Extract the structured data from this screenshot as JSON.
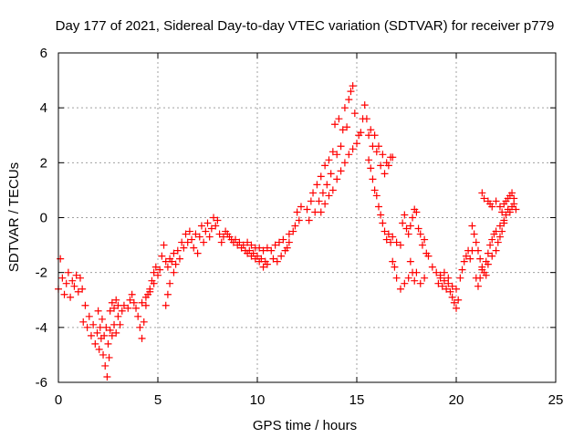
{
  "chart_data": {
    "type": "scatter",
    "title": "Day 177 of 2021, Sidereal Day-to-day VTEC variation (SDTVAR) for receiver p779",
    "xlabel": "GPS time / hours",
    "ylabel": "SDTVAR / TECUs",
    "xlim": [
      0,
      25
    ],
    "ylim": [
      -6,
      6
    ],
    "xticks": [
      0,
      5,
      10,
      15,
      20,
      25
    ],
    "yticks": [
      -6,
      -4,
      -2,
      0,
      2,
      4,
      6
    ],
    "grid": true,
    "marker": "+",
    "color": "#ff0000",
    "series": [
      {
        "name": "SDTVAR",
        "points": [
          [
            0.0,
            -2.6
          ],
          [
            0.1,
            -1.5
          ],
          [
            0.2,
            -2.2
          ],
          [
            0.3,
            -2.8
          ],
          [
            0.4,
            -2.4
          ],
          [
            0.5,
            -2.0
          ],
          [
            0.6,
            -2.9
          ],
          [
            0.7,
            -2.3
          ],
          [
            0.8,
            -2.5
          ],
          [
            0.9,
            -2.1
          ],
          [
            1.0,
            -2.7
          ],
          [
            1.1,
            -2.2
          ],
          [
            1.2,
            -2.6
          ],
          [
            1.25,
            -3.8
          ],
          [
            1.35,
            -3.2
          ],
          [
            1.45,
            -4.0
          ],
          [
            1.55,
            -3.6
          ],
          [
            1.65,
            -4.3
          ],
          [
            1.75,
            -3.9
          ],
          [
            1.85,
            -4.6
          ],
          [
            1.95,
            -4.2
          ],
          [
            2.05,
            -4.8
          ],
          [
            2.15,
            -4.4
          ],
          [
            2.25,
            -5.0
          ],
          [
            2.35,
            -5.4
          ],
          [
            2.45,
            -5.8
          ],
          [
            2.55,
            -5.1
          ],
          [
            2.0,
            -3.4
          ],
          [
            2.1,
            -4.0
          ],
          [
            2.2,
            -3.7
          ],
          [
            2.3,
            -4.3
          ],
          [
            2.4,
            -4.0
          ],
          [
            2.5,
            -4.6
          ],
          [
            2.6,
            -4.1
          ],
          [
            2.7,
            -4.3
          ],
          [
            2.8,
            -3.9
          ],
          [
            2.9,
            -4.2
          ],
          [
            3.0,
            -3.6
          ],
          [
            3.1,
            -3.9
          ],
          [
            2.6,
            -3.4
          ],
          [
            2.7,
            -3.1
          ],
          [
            2.8,
            -3.3
          ],
          [
            2.9,
            -3.0
          ],
          [
            3.0,
            -3.2
          ],
          [
            3.2,
            -3.4
          ],
          [
            3.3,
            -3.2
          ],
          [
            3.5,
            -3.3
          ],
          [
            3.6,
            -3.0
          ],
          [
            3.7,
            -2.8
          ],
          [
            3.8,
            -3.1
          ],
          [
            3.9,
            -3.3
          ],
          [
            4.0,
            -3.6
          ],
          [
            4.1,
            -4.0
          ],
          [
            4.2,
            -4.4
          ],
          [
            4.3,
            -3.8
          ],
          [
            4.4,
            -3.2
          ],
          [
            4.5,
            -2.8
          ],
          [
            4.6,
            -2.6
          ],
          [
            4.7,
            -2.3
          ],
          [
            4.8,
            -2.0
          ],
          [
            4.9,
            -1.8
          ],
          [
            4.2,
            -3.1
          ],
          [
            4.4,
            -2.9
          ],
          [
            4.6,
            -2.7
          ],
          [
            4.8,
            -2.4
          ],
          [
            5.0,
            -2.1
          ],
          [
            5.1,
            -1.9
          ],
          [
            5.2,
            -1.4
          ],
          [
            5.3,
            -1.0
          ],
          [
            5.4,
            -1.6
          ],
          [
            5.5,
            -1.8
          ],
          [
            5.6,
            -1.5
          ],
          [
            5.7,
            -1.6
          ],
          [
            5.8,
            -1.3
          ],
          [
            5.4,
            -3.2
          ],
          [
            5.5,
            -2.8
          ],
          [
            5.6,
            -2.4
          ],
          [
            5.8,
            -2.0
          ],
          [
            5.9,
            -1.7
          ],
          [
            6.0,
            -1.2
          ],
          [
            6.1,
            -1.5
          ],
          [
            6.2,
            -0.9
          ],
          [
            6.3,
            -1.1
          ],
          [
            6.4,
            -0.6
          ],
          [
            6.5,
            -0.9
          ],
          [
            6.6,
            -0.5
          ],
          [
            6.7,
            -0.8
          ],
          [
            6.8,
            -1.1
          ],
          [
            6.9,
            -0.6
          ],
          [
            7.0,
            -1.3
          ],
          [
            7.1,
            -0.7
          ],
          [
            7.2,
            -0.3
          ],
          [
            7.3,
            -0.9
          ],
          [
            7.4,
            -0.5
          ],
          [
            7.5,
            -0.2
          ],
          [
            7.6,
            -0.7
          ],
          [
            7.7,
            -0.4
          ],
          [
            7.8,
            0.0
          ],
          [
            7.9,
            -0.3
          ],
          [
            8.0,
            -0.1
          ],
          [
            8.1,
            -0.6
          ],
          [
            8.2,
            -0.9
          ],
          [
            8.3,
            -0.7
          ],
          [
            8.4,
            -0.5
          ],
          [
            8.5,
            -0.6
          ],
          [
            8.6,
            -0.7
          ],
          [
            8.7,
            -0.8
          ],
          [
            8.8,
            -0.9
          ],
          [
            8.9,
            -0.8
          ],
          [
            9.0,
            -1.0
          ],
          [
            9.1,
            -0.9
          ],
          [
            9.2,
            -1.1
          ],
          [
            9.3,
            -1.0
          ],
          [
            9.4,
            -1.2
          ],
          [
            9.5,
            -1.3
          ],
          [
            9.6,
            -1.2
          ],
          [
            9.7,
            -1.4
          ],
          [
            9.8,
            -1.3
          ],
          [
            9.9,
            -1.5
          ],
          [
            10.0,
            -1.4
          ],
          [
            10.1,
            -1.6
          ],
          [
            10.2,
            -1.5
          ],
          [
            10.3,
            -1.8
          ],
          [
            10.4,
            -1.6
          ],
          [
            10.5,
            -1.7
          ],
          [
            9.5,
            -0.9
          ],
          [
            9.7,
            -1.0
          ],
          [
            9.9,
            -1.1
          ],
          [
            10.1,
            -1.1
          ],
          [
            10.3,
            -1.2
          ],
          [
            10.5,
            -1.1
          ],
          [
            10.7,
            -1.2
          ],
          [
            10.9,
            -1.0
          ],
          [
            11.1,
            -0.9
          ],
          [
            11.3,
            -0.8
          ],
          [
            11.5,
            -1.1
          ],
          [
            11.6,
            -0.6
          ],
          [
            10.8,
            -1.5
          ],
          [
            11.0,
            -1.6
          ],
          [
            11.2,
            -1.4
          ],
          [
            11.4,
            -1.2
          ],
          [
            11.6,
            -0.9
          ],
          [
            11.8,
            -0.5
          ],
          [
            11.9,
            -0.3
          ],
          [
            12.0,
            0.2
          ],
          [
            12.1,
            -0.1
          ],
          [
            12.2,
            0.4
          ],
          [
            12.5,
            0.3
          ],
          [
            12.6,
            -0.1
          ],
          [
            12.7,
            0.6
          ],
          [
            12.8,
            0.9
          ],
          [
            12.9,
            0.2
          ],
          [
            13.0,
            1.2
          ],
          [
            13.1,
            0.6
          ],
          [
            13.2,
            1.5
          ],
          [
            13.3,
            0.9
          ],
          [
            13.4,
            1.9
          ],
          [
            13.5,
            1.2
          ],
          [
            13.6,
            2.1
          ],
          [
            13.7,
            1.6
          ],
          [
            13.8,
            2.4
          ],
          [
            13.9,
            3.4
          ],
          [
            14.0,
            2.3
          ],
          [
            14.1,
            3.6
          ],
          [
            14.2,
            2.6
          ],
          [
            14.3,
            3.2
          ],
          [
            14.4,
            4.0
          ],
          [
            14.5,
            3.3
          ],
          [
            14.6,
            4.3
          ],
          [
            14.7,
            4.6
          ],
          [
            14.8,
            4.8
          ],
          [
            14.9,
            3.8
          ],
          [
            13.2,
            0.2
          ],
          [
            13.4,
            0.5
          ],
          [
            13.6,
            0.8
          ],
          [
            13.8,
            1.0
          ],
          [
            14.0,
            1.4
          ],
          [
            14.2,
            1.7
          ],
          [
            14.4,
            2.0
          ],
          [
            14.6,
            2.3
          ],
          [
            14.8,
            2.5
          ],
          [
            15.0,
            2.7
          ],
          [
            15.1,
            3.0
          ],
          [
            15.2,
            3.1
          ],
          [
            15.3,
            3.6
          ],
          [
            15.4,
            4.1
          ],
          [
            15.5,
            3.6
          ],
          [
            15.6,
            3.0
          ],
          [
            15.7,
            3.2
          ],
          [
            15.8,
            2.6
          ],
          [
            15.9,
            3.0
          ],
          [
            16.0,
            2.4
          ],
          [
            16.1,
            2.6
          ],
          [
            16.2,
            1.9
          ],
          [
            16.3,
            2.3
          ],
          [
            16.4,
            1.6
          ],
          [
            16.5,
            2.0
          ],
          [
            16.6,
            1.9
          ],
          [
            16.7,
            2.2
          ],
          [
            16.8,
            2.2
          ],
          [
            15.6,
            2.1
          ],
          [
            15.7,
            1.8
          ],
          [
            15.8,
            1.4
          ],
          [
            15.9,
            1.0
          ],
          [
            16.0,
            0.8
          ],
          [
            16.1,
            0.4
          ],
          [
            16.2,
            0.1
          ],
          [
            16.3,
            -0.2
          ],
          [
            16.4,
            -0.5
          ],
          [
            16.5,
            -0.8
          ],
          [
            16.6,
            -0.6
          ],
          [
            16.7,
            -0.9
          ],
          [
            16.8,
            -0.7
          ],
          [
            17.0,
            -0.9
          ],
          [
            17.2,
            -1.0
          ],
          [
            17.3,
            -0.2
          ],
          [
            17.4,
            0.1
          ],
          [
            17.5,
            -0.4
          ],
          [
            17.6,
            -0.6
          ],
          [
            17.7,
            -0.3
          ],
          [
            17.8,
            0.0
          ],
          [
            17.9,
            0.3
          ],
          [
            18.0,
            0.2
          ],
          [
            18.1,
            -0.4
          ],
          [
            18.2,
            -0.6
          ],
          [
            18.3,
            -1.0
          ],
          [
            18.4,
            -0.8
          ],
          [
            18.5,
            -1.3
          ],
          [
            16.8,
            -1.6
          ],
          [
            16.9,
            -1.8
          ],
          [
            17.0,
            -2.2
          ],
          [
            17.2,
            -2.6
          ],
          [
            17.4,
            -2.4
          ],
          [
            17.6,
            -2.2
          ],
          [
            17.7,
            -1.6
          ],
          [
            17.8,
            -2.0
          ],
          [
            17.9,
            -2.3
          ],
          [
            18.0,
            -2.0
          ],
          [
            18.2,
            -2.4
          ],
          [
            18.4,
            -2.2
          ],
          [
            18.6,
            -1.4
          ],
          [
            18.8,
            -1.8
          ],
          [
            19.0,
            -2.0
          ],
          [
            19.1,
            -2.4
          ],
          [
            19.2,
            -2.2
          ],
          [
            19.3,
            -2.5
          ],
          [
            19.4,
            -2.3
          ],
          [
            19.5,
            -2.6
          ],
          [
            19.6,
            -2.4
          ],
          [
            19.7,
            -2.7
          ],
          [
            19.8,
            -2.9
          ],
          [
            19.9,
            -3.1
          ],
          [
            20.0,
            -3.3
          ],
          [
            20.1,
            -3.0
          ],
          [
            19.2,
            -2.1
          ],
          [
            19.4,
            -2.0
          ],
          [
            19.6,
            -2.2
          ],
          [
            19.8,
            -2.5
          ],
          [
            20.0,
            -2.6
          ],
          [
            20.2,
            -2.2
          ],
          [
            20.3,
            -1.9
          ],
          [
            20.4,
            -1.6
          ],
          [
            20.5,
            -1.4
          ],
          [
            20.6,
            -1.2
          ],
          [
            20.7,
            -1.5
          ],
          [
            20.8,
            -1.2
          ],
          [
            20.8,
            -0.3
          ],
          [
            20.9,
            -0.6
          ],
          [
            21.0,
            -0.9
          ],
          [
            21.1,
            -1.2
          ],
          [
            21.2,
            -1.5
          ],
          [
            21.3,
            -1.8
          ],
          [
            21.4,
            -2.0
          ],
          [
            21.5,
            -1.6
          ],
          [
            21.6,
            -1.3
          ],
          [
            21.7,
            -1.0
          ],
          [
            21.8,
            -0.8
          ],
          [
            21.9,
            -0.6
          ],
          [
            21.0,
            -2.2
          ],
          [
            21.1,
            -2.5
          ],
          [
            21.2,
            -2.2
          ],
          [
            21.3,
            -1.9
          ],
          [
            21.5,
            -2.1
          ],
          [
            21.6,
            -1.7
          ],
          [
            21.8,
            -1.4
          ],
          [
            22.0,
            -1.2
          ],
          [
            22.1,
            -0.9
          ],
          [
            22.2,
            -0.7
          ],
          [
            22.3,
            -0.5
          ],
          [
            22.4,
            -0.2
          ],
          [
            21.3,
            0.9
          ],
          [
            21.4,
            0.7
          ],
          [
            21.6,
            0.6
          ],
          [
            21.7,
            0.5
          ],
          [
            21.8,
            0.4
          ],
          [
            22.0,
            0.6
          ],
          [
            22.2,
            0.4
          ],
          [
            22.3,
            0.2
          ],
          [
            22.4,
            0.5
          ],
          [
            22.5,
            0.6
          ],
          [
            22.6,
            0.7
          ],
          [
            22.7,
            0.8
          ],
          [
            22.8,
            0.9
          ],
          [
            22.9,
            0.7
          ],
          [
            22.0,
            -0.5
          ],
          [
            22.2,
            -0.3
          ],
          [
            22.4,
            -0.1
          ],
          [
            22.5,
            0.1
          ],
          [
            22.6,
            0.3
          ],
          [
            22.7,
            0.2
          ],
          [
            22.8,
            0.4
          ],
          [
            22.9,
            0.5
          ],
          [
            23.0,
            0.3
          ]
        ]
      }
    ]
  }
}
